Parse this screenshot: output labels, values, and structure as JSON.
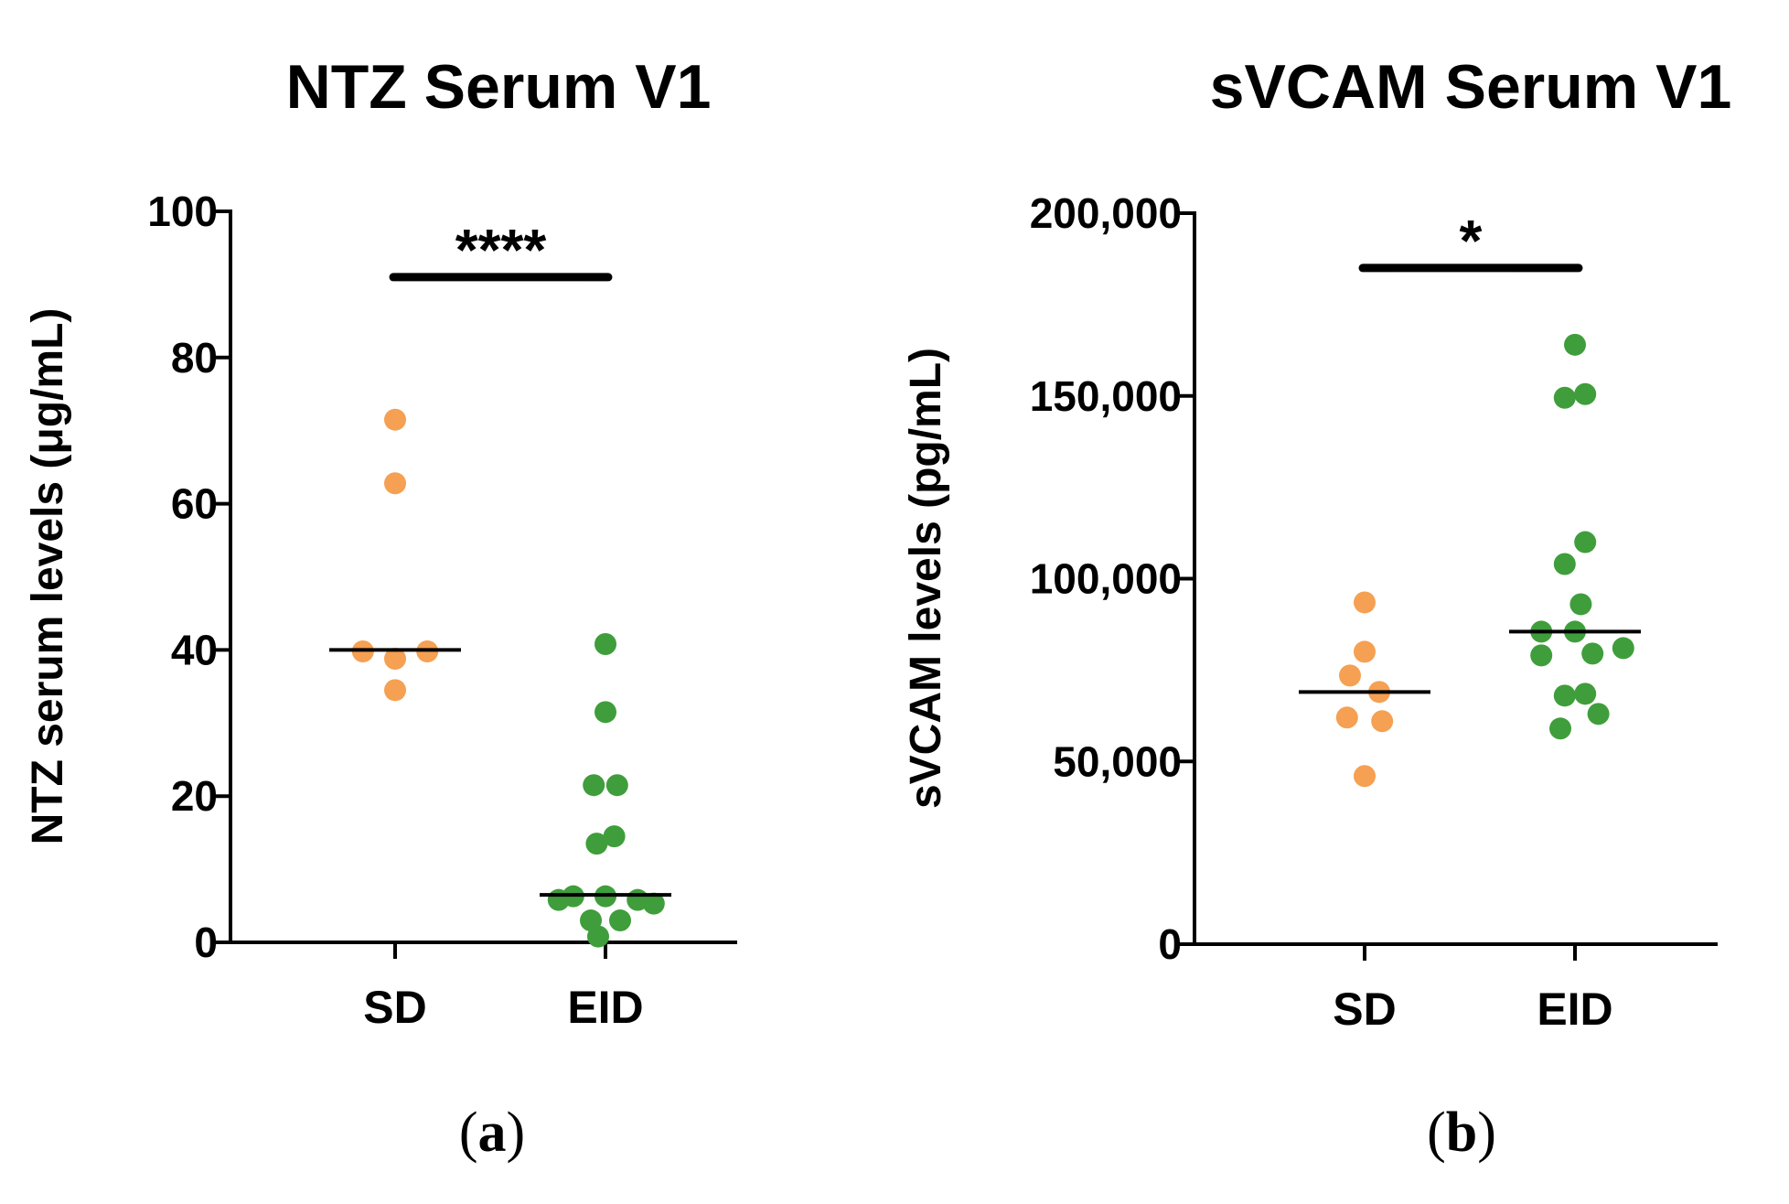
{
  "chart_data": [
    {
      "type": "scatter",
      "panel_label": "(a)",
      "panel_letter": "a",
      "title": "NTZ Serum V1",
      "xlabel": "",
      "ylabel": "NTZ serum levels (μg/mL)",
      "ylim": [
        0,
        100
      ],
      "yticks": [
        0,
        20,
        40,
        60,
        80,
        100
      ],
      "ytick_labels": [
        "0",
        "20",
        "40",
        "60",
        "80",
        "100"
      ],
      "categories": [
        "SD",
        "EID"
      ],
      "significance": {
        "label": "****",
        "y": 91
      },
      "series": [
        {
          "name": "SD",
          "color": "#f5a052",
          "points": [
            {
              "dx": 0,
              "y": 71.5
            },
            {
              "dx": 0,
              "y": 62.8
            },
            {
              "dx": -0.22,
              "y": 39.8
            },
            {
              "dx": 0,
              "y": 38.8
            },
            {
              "dx": 0.22,
              "y": 39.8
            },
            {
              "dx": 0,
              "y": 34.5
            }
          ],
          "median": 40
        },
        {
          "name": "EID",
          "color": "#3f9e3b",
          "points": [
            {
              "dx": 0,
              "y": 40.8
            },
            {
              "dx": 0,
              "y": 31.5
            },
            {
              "dx": -0.08,
              "y": 21.5
            },
            {
              "dx": 0.08,
              "y": 21.5
            },
            {
              "dx": 0.06,
              "y": 14.5
            },
            {
              "dx": -0.06,
              "y": 13.5
            },
            {
              "dx": -0.32,
              "y": 5.8
            },
            {
              "dx": -0.22,
              "y": 6.3
            },
            {
              "dx": 0,
              "y": 6.3
            },
            {
              "dx": 0.22,
              "y": 5.8
            },
            {
              "dx": 0.33,
              "y": 5.3
            },
            {
              "dx": -0.1,
              "y": 3.0
            },
            {
              "dx": 0.1,
              "y": 3.0
            },
            {
              "dx": -0.05,
              "y": 0.8
            }
          ],
          "median": 6.5
        }
      ]
    },
    {
      "type": "scatter",
      "panel_label": "(b)",
      "panel_letter": "b",
      "title": "sVCAM Serum V1",
      "xlabel": "",
      "ylabel": "sVCAM levels (pg/mL)",
      "ylim": [
        0,
        200000
      ],
      "yticks": [
        0,
        50000,
        100000,
        150000,
        200000
      ],
      "ytick_labels": [
        "0",
        "50,000",
        "100,000",
        "150,000",
        "200,000"
      ],
      "categories": [
        "SD",
        "EID"
      ],
      "significance": {
        "label": "*",
        "y": 185000
      },
      "series": [
        {
          "name": "SD",
          "color": "#f5a052",
          "points": [
            {
              "dx": 0,
              "y": 93500
            },
            {
              "dx": 0,
              "y": 80000
            },
            {
              "dx": -0.1,
              "y": 73500
            },
            {
              "dx": 0.1,
              "y": 69000
            },
            {
              "dx": -0.12,
              "y": 62000
            },
            {
              "dx": 0.12,
              "y": 61000
            },
            {
              "dx": 0,
              "y": 46000
            }
          ],
          "median": 69000
        },
        {
          "name": "EID",
          "color": "#3f9e3b",
          "points": [
            {
              "dx": 0,
              "y": 164000
            },
            {
              "dx": -0.07,
              "y": 149500
            },
            {
              "dx": 0.07,
              "y": 150500
            },
            {
              "dx": 0.07,
              "y": 110000
            },
            {
              "dx": -0.07,
              "y": 104000
            },
            {
              "dx": 0.04,
              "y": 93000
            },
            {
              "dx": -0.23,
              "y": 85500
            },
            {
              "dx": 0,
              "y": 85500
            },
            {
              "dx": -0.23,
              "y": 79000
            },
            {
              "dx": 0.12,
              "y": 79500
            },
            {
              "dx": 0.33,
              "y": 81000
            },
            {
              "dx": -0.07,
              "y": 68000
            },
            {
              "dx": 0.07,
              "y": 68500
            },
            {
              "dx": 0.16,
              "y": 63000
            },
            {
              "dx": -0.1,
              "y": 59000
            }
          ],
          "median": 85500
        }
      ]
    }
  ]
}
